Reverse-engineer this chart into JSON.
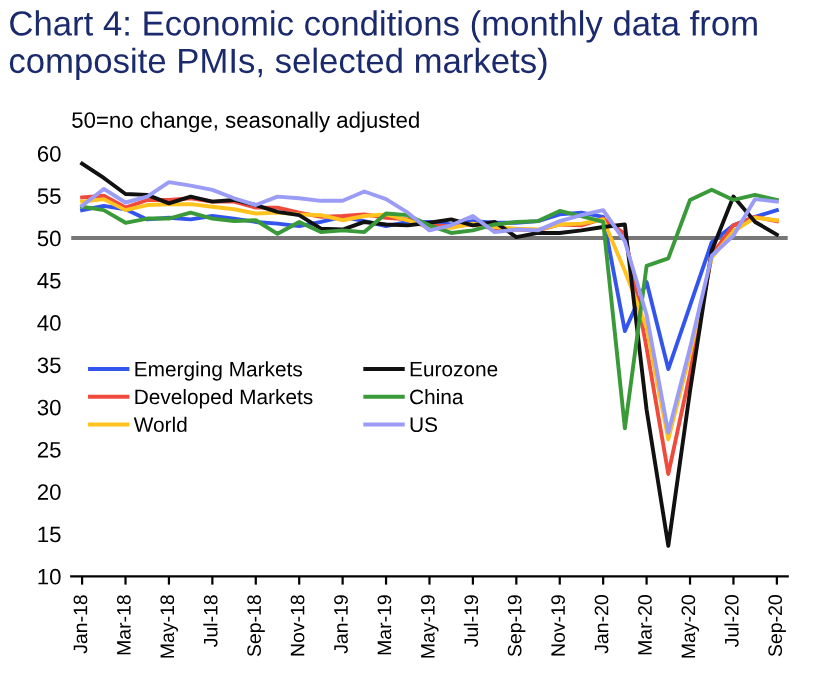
{
  "chart_data": {
    "type": "line",
    "title": "Chart 4: Economic conditions (monthly data from composite PMIs, selected markets)",
    "subtitle": "50=no change, seasonally adjusted",
    "categories": [
      "Jan-18",
      null,
      "Mar-18",
      null,
      "May-18",
      null,
      "Jul-18",
      null,
      "Sep-18",
      null,
      "Nov-18",
      null,
      "Jan-19",
      null,
      "Mar-19",
      null,
      "May-19",
      null,
      "Jul-19",
      null,
      "Sep-19",
      null,
      "Nov-19",
      null,
      "Jan-20",
      null,
      "Mar-20",
      null,
      "May-20",
      null,
      "Jul-20",
      null,
      "Sep-20"
    ],
    "series": [
      {
        "name": "Emerging Markets",
        "color": "#3355ee",
        "values": [
          53.3,
          53.8,
          53.4,
          52.2,
          52.4,
          52.2,
          52.6,
          52.3,
          51.9,
          51.7,
          51.4,
          51.9,
          52.5,
          52.0,
          51.4,
          51.9,
          51.9,
          51.6,
          52.0,
          51.8,
          51.8,
          52.0,
          52.8,
          53.0,
          52.5,
          39.0,
          44.8,
          34.5,
          42.0,
          49.5,
          51.5,
          52.5,
          53.3
        ]
      },
      {
        "name": "Developed Markets",
        "color": "#f04a3c",
        "values": [
          54.8,
          55.0,
          53.6,
          54.5,
          54.5,
          54.7,
          54.3,
          54.3,
          53.6,
          53.6,
          53.0,
          52.5,
          52.6,
          52.8,
          52.4,
          52.2,
          51.5,
          51.4,
          51.6,
          51.1,
          51.0,
          50.9,
          51.6,
          51.5,
          52.3,
          50.5,
          37.0,
          22.1,
          34.0,
          48.0,
          51.5,
          52.5,
          52.0
        ]
      },
      {
        "name": "World",
        "color": "#ffc21f",
        "values": [
          54.3,
          54.6,
          53.3,
          53.9,
          54.0,
          54.0,
          53.7,
          53.4,
          52.9,
          53.0,
          52.8,
          52.7,
          52.1,
          52.6,
          52.8,
          52.1,
          51.2,
          51.2,
          51.7,
          51.3,
          51.1,
          51.0,
          51.6,
          51.7,
          52.2,
          46.1,
          39.4,
          26.2,
          36.3,
          47.7,
          50.8,
          52.4,
          52.1
        ]
      },
      {
        "name": "Eurozone",
        "color": "#111111",
        "values": [
          58.8,
          57.1,
          55.2,
          55.1,
          54.1,
          54.9,
          54.3,
          54.5,
          53.9,
          53.1,
          52.7,
          51.1,
          51.0,
          51.9,
          51.6,
          51.5,
          51.8,
          52.2,
          51.5,
          51.9,
          50.1,
          50.6,
          50.6,
          50.9,
          51.3,
          51.6,
          29.7,
          13.6,
          31.9,
          48.5,
          54.9,
          51.9,
          50.4
        ]
      },
      {
        "name": "China",
        "color": "#3a9a3a",
        "values": [
          53.7,
          53.3,
          51.8,
          52.3,
          52.3,
          53.0,
          52.3,
          52.0,
          52.1,
          50.5,
          51.9,
          50.7,
          50.9,
          50.7,
          52.9,
          52.7,
          51.5,
          50.6,
          50.9,
          51.6,
          51.9,
          52.0,
          53.2,
          52.6,
          51.9,
          27.5,
          46.7,
          47.6,
          54.5,
          55.7,
          54.5,
          55.1,
          54.5
        ]
      },
      {
        "name": "US",
        "color": "#9a9cf5",
        "values": [
          53.8,
          55.8,
          54.2,
          54.9,
          56.6,
          56.2,
          55.7,
          54.7,
          53.9,
          54.9,
          54.7,
          54.4,
          54.4,
          55.5,
          54.6,
          53.0,
          50.9,
          51.5,
          52.6,
          50.7,
          51.0,
          50.9,
          52.0,
          52.7,
          53.3,
          49.6,
          40.9,
          27.0,
          37.0,
          47.9,
          50.3,
          54.6,
          54.3
        ]
      }
    ],
    "ylim": [
      10,
      60
    ],
    "yticks": [
      10,
      15,
      20,
      25,
      30,
      35,
      40,
      45,
      50,
      55,
      60
    ],
    "ref_lines": [
      {
        "axis": "y",
        "value": 50,
        "color": "#777777"
      }
    ],
    "legend": "center left",
    "grid": false
  }
}
